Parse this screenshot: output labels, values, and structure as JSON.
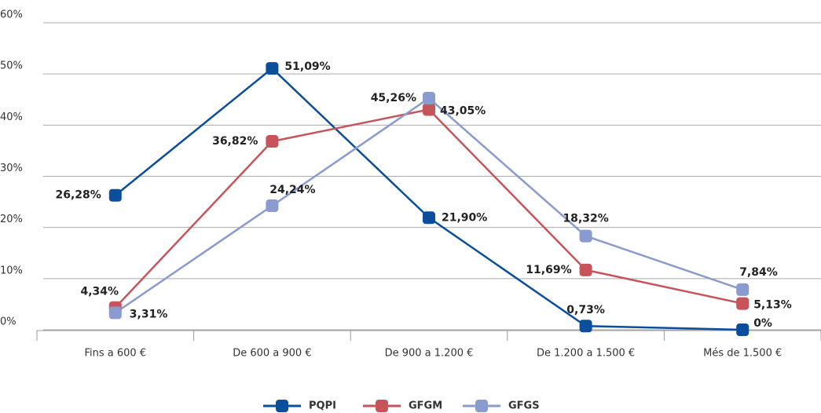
{
  "chart_data": {
    "type": "line",
    "categories": [
      "Fins a 600 €",
      "De 600 a 900 €",
      "De 900 a 1.200 €",
      "De 1.200 a 1.500 €",
      "Més de 1.500 €"
    ],
    "series": [
      {
        "name": "PQPI",
        "color": "#0b4f9c",
        "values": [
          26.28,
          51.09,
          21.9,
          0.73,
          0
        ],
        "value_labels": [
          "26,28%",
          "51,09%",
          "21,90%",
          "0,73%",
          "0%"
        ]
      },
      {
        "name": "GFGM",
        "color": "#c8545b",
        "values": [
          4.34,
          36.82,
          43.05,
          11.69,
          5.13
        ],
        "value_labels": [
          "4,34%",
          "36,82%",
          "43,05%",
          "11,69%",
          "5,13%"
        ]
      },
      {
        "name": "GFGS",
        "color": "#8a9bcf",
        "values": [
          3.31,
          24.24,
          45.26,
          18.32,
          7.84
        ],
        "value_labels": [
          "3,31%",
          "24,24%",
          "45,26%",
          "18,32%",
          "7,84%"
        ]
      }
    ],
    "ylim": [
      0,
      60
    ],
    "yticks": [
      {
        "value": 0,
        "label": "0%"
      },
      {
        "value": 10,
        "label": "10%"
      },
      {
        "value": 20,
        "label": "20%"
      },
      {
        "value": 30,
        "label": "30%"
      },
      {
        "value": 40,
        "label": "40%"
      },
      {
        "value": 50,
        "label": "50%"
      },
      {
        "value": 60,
        "label": "60%"
      }
    ],
    "grid": true,
    "legend": "bottom"
  }
}
